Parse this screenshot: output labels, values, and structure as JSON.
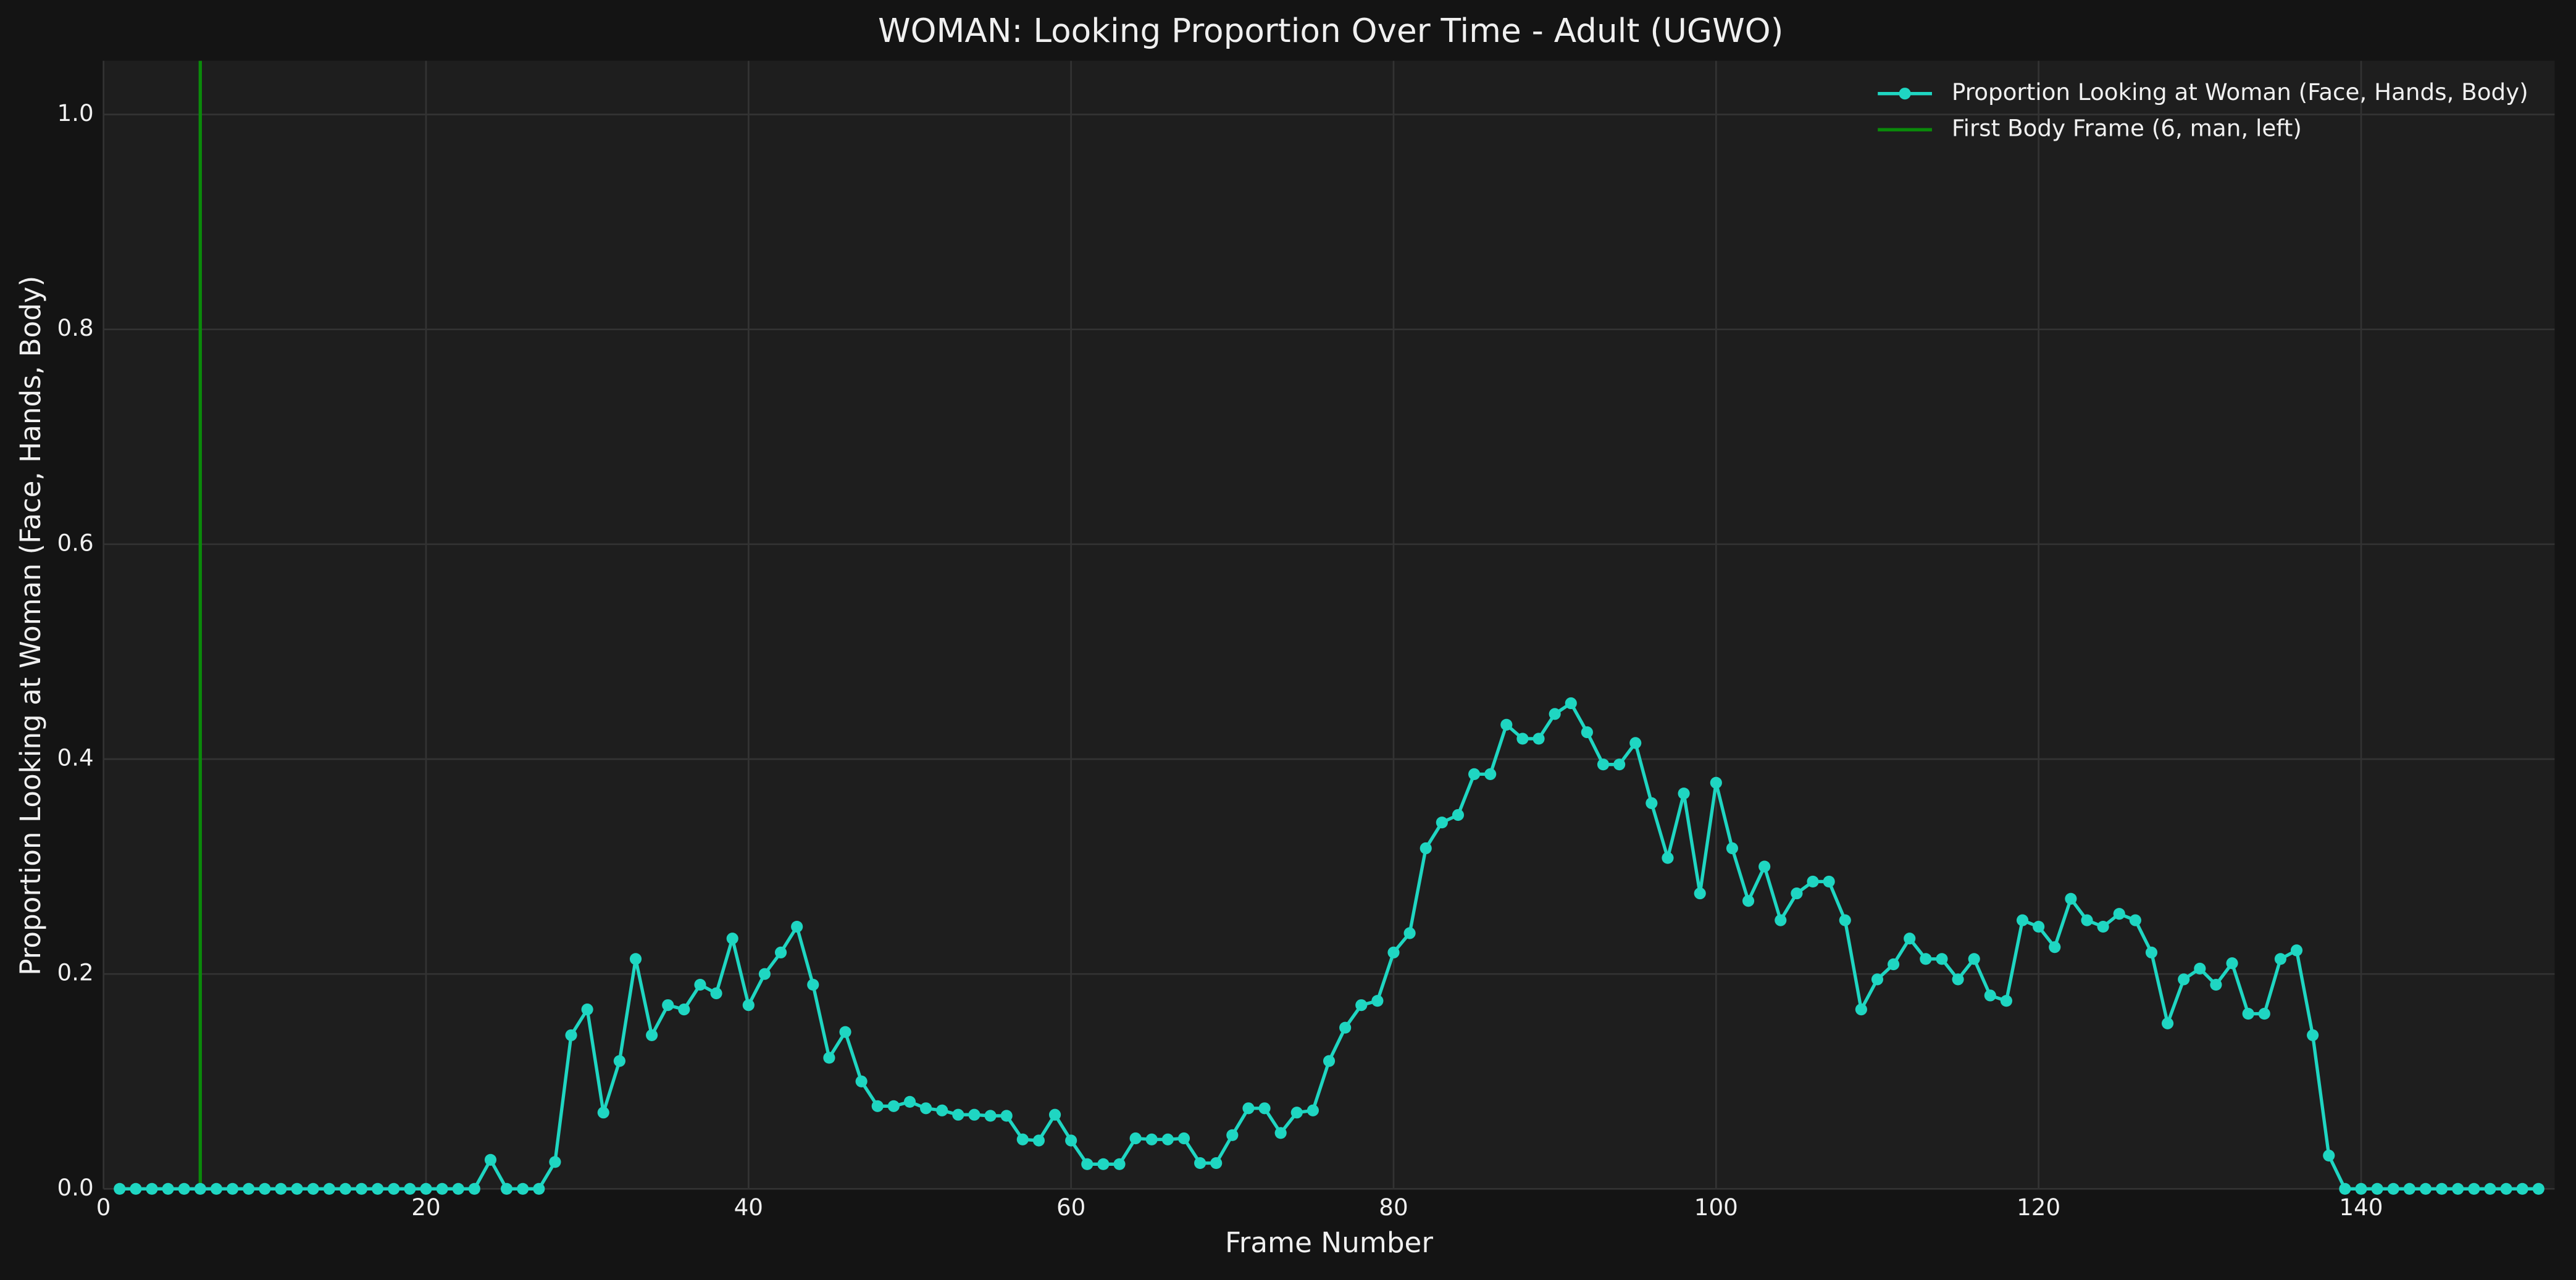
{
  "chart_data": {
    "type": "line",
    "title": "WOMAN: Looking Proportion Over Time - Adult (UGWO)",
    "xlabel": "Frame Number",
    "ylabel": "Proportion Looking at Woman (Face, Hands, Body)",
    "x": [
      1,
      2,
      3,
      4,
      5,
      6,
      7,
      8,
      9,
      10,
      11,
      12,
      13,
      14,
      15,
      16,
      17,
      18,
      19,
      20,
      21,
      22,
      23,
      24,
      25,
      26,
      27,
      28,
      29,
      30,
      31,
      32,
      33,
      34,
      35,
      36,
      37,
      38,
      39,
      40,
      41,
      42,
      43,
      44,
      45,
      46,
      47,
      48,
      49,
      50,
      51,
      52,
      53,
      54,
      55,
      56,
      57,
      58,
      59,
      60,
      61,
      62,
      63,
      64,
      65,
      66,
      67,
      68,
      69,
      70,
      71,
      72,
      73,
      74,
      75,
      76,
      77,
      78,
      79,
      80,
      81,
      82,
      83,
      84,
      85,
      86,
      87,
      88,
      89,
      90,
      91,
      92,
      93,
      94,
      95,
      96,
      97,
      98,
      99,
      100,
      101,
      102,
      103,
      104,
      105,
      106,
      107,
      108,
      109,
      110,
      111,
      112,
      113,
      114,
      115,
      116,
      117,
      118,
      119,
      120,
      121,
      122,
      123,
      124,
      125,
      126,
      127,
      128,
      129,
      130,
      131,
      132,
      133,
      134,
      135,
      136,
      137,
      138,
      139,
      140,
      141,
      142,
      143,
      144,
      145,
      146,
      147,
      148,
      149,
      150,
      151
    ],
    "series": [
      {
        "name": "Proportion Looking at Woman (Face, Hands, Body)",
        "color": "#1fd6c2",
        "values": [
          0,
          0,
          0,
          0,
          0,
          0,
          0,
          0,
          0,
          0,
          0,
          0,
          0,
          0,
          0,
          0,
          0,
          0,
          0,
          0,
          0,
          0,
          0,
          0.027,
          0,
          0,
          0,
          0.025,
          0.143,
          0.167,
          0.071,
          0.119,
          0.214,
          0.143,
          0.171,
          0.167,
          0.19,
          0.182,
          0.233,
          0.171,
          0.2,
          0.22,
          0.244,
          0.19,
          0.122,
          0.146,
          0.1,
          0.077,
          0.077,
          0.081,
          0.075,
          0.073,
          0.069,
          0.069,
          0.068,
          0.068,
          0.046,
          0.045,
          0.069,
          0.045,
          0.023,
          0.023,
          0.023,
          0.047,
          0.046,
          0.046,
          0.047,
          0.024,
          0.024,
          0.05,
          0.075,
          0.075,
          0.052,
          0.071,
          0.073,
          0.119,
          0.15,
          0.171,
          0.175,
          0.22,
          0.238,
          0.317,
          0.341,
          0.348,
          0.386,
          0.386,
          0.432,
          0.419,
          0.419,
          0.442,
          0.452,
          0.425,
          0.395,
          0.395,
          0.415,
          0.359,
          0.308,
          0.368,
          0.275,
          0.378,
          0.317,
          0.268,
          0.3,
          0.25,
          0.275,
          0.286,
          0.286,
          0.25,
          0.167,
          0.195,
          0.209,
          0.233,
          0.214,
          0.214,
          0.195,
          0.214,
          0.18,
          0.175,
          0.25,
          0.244,
          0.225,
          0.27,
          0.25,
          0.244,
          0.256,
          0.25,
          0.22,
          0.154,
          0.195,
          0.205,
          0.19,
          0.21,
          0.163,
          0.163,
          0.214,
          0.222,
          0.143,
          0.031,
          0,
          0,
          0,
          0,
          0,
          0,
          0,
          0,
          0,
          0,
          0,
          0,
          0
        ]
      }
    ],
    "vlines": [
      {
        "x": 6,
        "label": "First Body Frame (6, man, left)",
        "color": "#0a8a0a"
      }
    ],
    "xlim": [
      0,
      152
    ],
    "xticks": [
      0,
      20,
      40,
      60,
      80,
      100,
      120,
      140
    ],
    "ylim": [
      0,
      1.05
    ],
    "yticks": [
      {
        "value": 0,
        "label": "0.0"
      },
      0.2,
      0.4,
      0.6,
      0.8,
      {
        "value": 1,
        "label": "1.0"
      }
    ],
    "grid": true,
    "legend": "upper right"
  }
}
